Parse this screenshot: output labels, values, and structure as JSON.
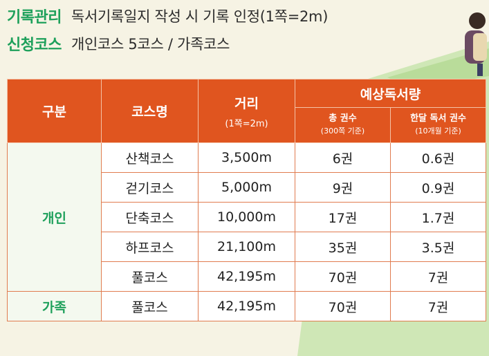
{
  "info": [
    {
      "tag": "기록관리",
      "text": "독서기록일지 작성 시 기록 인정(1쪽=2m)"
    },
    {
      "tag": "신청코스",
      "text": "개인코스 5코스 / 가족코스"
    }
  ],
  "table": {
    "headers": {
      "group": "구분",
      "course": "코스명",
      "distance": "거리",
      "distance_sub": "(1쪽=2m)",
      "expected": "예상독서량",
      "total_books": "총 권수",
      "total_books_sub": "(300쪽 기준)",
      "monthly_books": "한달 독서 권수",
      "monthly_books_sub": "(10개월 기준)"
    },
    "groups": [
      {
        "label": "개인",
        "rows": [
          {
            "course": "산책코스",
            "distance": "3,500m",
            "total": "6권",
            "monthly": "0.6권"
          },
          {
            "course": "걷기코스",
            "distance": "5,000m",
            "total": "9권",
            "monthly": "0.9권"
          },
          {
            "course": "단축코스",
            "distance": "10,000m",
            "total": "17권",
            "monthly": "1.7권"
          },
          {
            "course": "하프코스",
            "distance": "21,100m",
            "total": "35권",
            "monthly": "3.5권"
          },
          {
            "course": "풀코스",
            "distance": "42,195m",
            "total": "70권",
            "monthly": "7권"
          }
        ]
      },
      {
        "label": "가족",
        "rows": [
          {
            "course": "풀코스",
            "distance": "42,195m",
            "total": "70권",
            "monthly": "7권"
          }
        ]
      }
    ]
  },
  "colors": {
    "header_bg": "#e0551f",
    "accent_green": "#1ea05b",
    "page_bg": "#f6f3e4"
  }
}
